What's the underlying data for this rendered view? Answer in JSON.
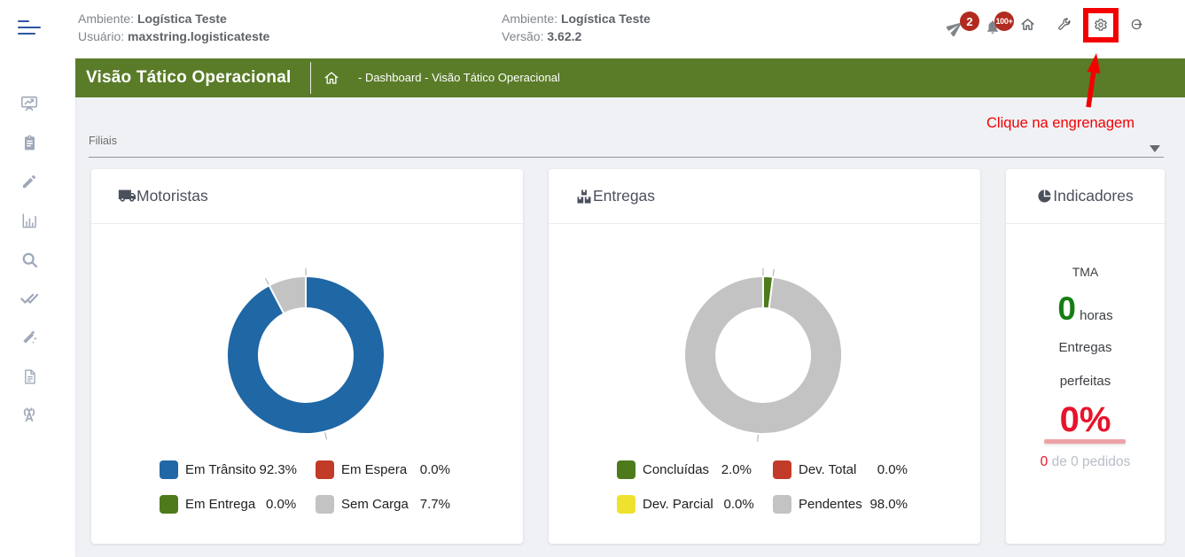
{
  "topbar": {
    "left": {
      "line1_label": "Ambiente:",
      "line1_value": "Logística Teste",
      "line2_label": "Usuário:",
      "line2_value": "maxstring.logisticateste"
    },
    "center": {
      "line1_label": "Ambiente:",
      "line1_value": "Logística Teste",
      "line2_label": "Versão:",
      "line2_value": "3.62.2"
    },
    "badges": {
      "messages": "2",
      "notifications": "100+"
    },
    "icons": [
      "paper-plane",
      "bell",
      "home",
      "wrench",
      "gear",
      "logout"
    ]
  },
  "header": {
    "title": "Visão Tático Operacional",
    "breadcrumb": "- Dashboard - Visão Tático Operacional",
    "bar_color": "#5a7c28"
  },
  "annotation": {
    "text": "Clique na engrenagem",
    "color": "#f40000",
    "highlight": "gear-icon"
  },
  "filters": {
    "label": "Filiais"
  },
  "sidebar": {
    "items": [
      {
        "icon": "presentation-chart"
      },
      {
        "icon": "clipboard"
      },
      {
        "icon": "pencil"
      },
      {
        "icon": "bar-chart"
      },
      {
        "icon": "search"
      },
      {
        "icon": "double-check"
      },
      {
        "icon": "magic-wand"
      },
      {
        "icon": "document"
      },
      {
        "icon": "antenna"
      }
    ]
  },
  "chart_data": [
    {
      "type": "donut",
      "title": "Motoristas",
      "icon": "truck",
      "legend_position": "bottom",
      "series": [
        {
          "name": "Em Trânsito",
          "value": 92.3,
          "color": "#1f67a5"
        },
        {
          "name": "Em Espera",
          "value": 0.0,
          "color": "#c23b28"
        },
        {
          "name": "Em Entrega",
          "value": 0.0,
          "color": "#4e7a1c"
        },
        {
          "name": "Sem Carga",
          "value": 7.7,
          "color": "#c3c3c4"
        }
      ]
    },
    {
      "type": "donut",
      "title": "Entregas",
      "icon": "boxes",
      "legend_position": "bottom",
      "series": [
        {
          "name": "Concluídas",
          "value": 2.0,
          "color": "#4e7a1c"
        },
        {
          "name": "Dev. Total",
          "value": 0.0,
          "color": "#c23b28"
        },
        {
          "name": "Dev. Parcial",
          "value": 0.0,
          "color": "#efe22f"
        },
        {
          "name": "Pendentes",
          "value": 98.0,
          "color": "#c3c3c4"
        }
      ]
    }
  ],
  "indicators": {
    "title": "Indicadores",
    "icon": "pie-chart",
    "tma_label": "TMA",
    "tma_value": "0",
    "tma_unit": " horas",
    "perfect_line1": "Entregas",
    "perfect_line2": "perfeitas",
    "perfect_value": "0%",
    "orders_value": "0",
    "orders_text": " de 0 pedidos"
  }
}
